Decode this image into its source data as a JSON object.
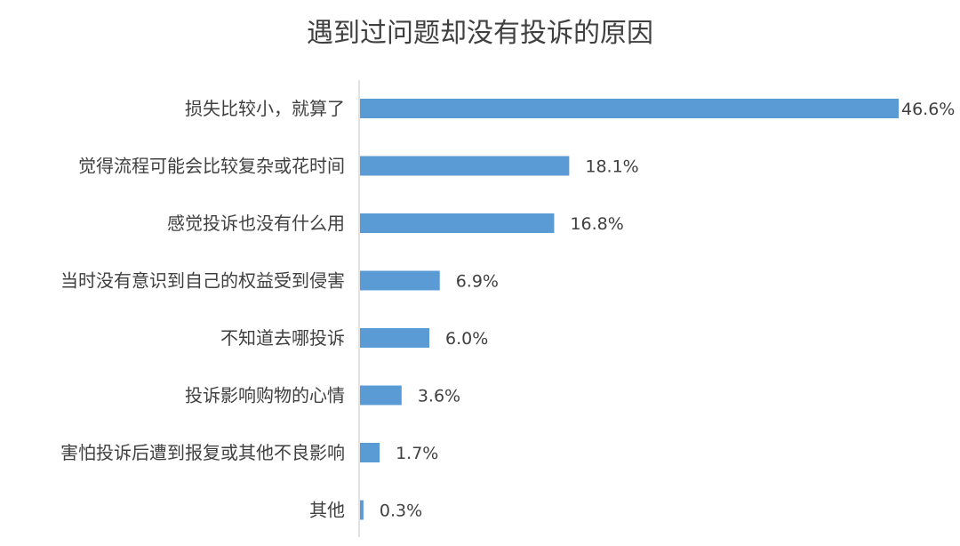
{
  "chart_data": {
    "type": "bar",
    "orientation": "horizontal",
    "title": "遇到过问题却没有投诉的原因",
    "categories": [
      "损失比较小，就算了",
      "觉得流程可能会比较复杂或花时间",
      "感觉投诉也没有什么用",
      "当时没有意识到自己的权益受到侵害",
      "不知道去哪投诉",
      "投诉影响购物的心情",
      "害怕投诉后遭到报复或其他不良影响",
      "其他"
    ],
    "values": [
      46.6,
      18.1,
      16.8,
      6.9,
      6.0,
      3.6,
      1.7,
      0.3
    ],
    "value_labels": [
      "46.6%",
      "18.1%",
      "16.8%",
      "6.9%",
      "6.0%",
      "3.6%",
      "1.7%",
      "0.3%"
    ],
    "xlim": [
      0,
      46.6
    ],
    "unit": "%",
    "grid": false,
    "legend": "none",
    "bar_color": "#5B9BD5",
    "axis_color": "#D9D9D9",
    "text_color": "#404040"
  }
}
